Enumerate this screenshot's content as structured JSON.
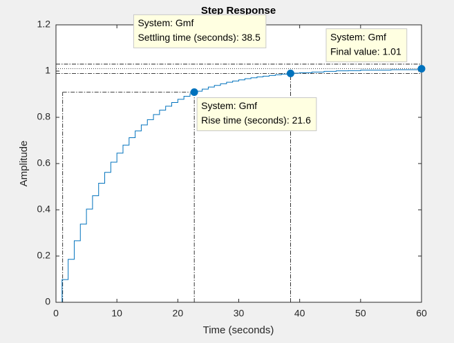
{
  "chart_data": {
    "type": "step",
    "title": "Step Response",
    "xlabel": "Time (seconds)",
    "ylabel": "Amplitude",
    "xlim": [
      0,
      60
    ],
    "ylim": [
      0,
      1.2
    ],
    "xticks": [
      0,
      10,
      20,
      30,
      40,
      50,
      60
    ],
    "yticks": [
      0,
      0.2,
      0.4,
      0.6,
      0.8,
      1,
      1.2
    ],
    "grid": false,
    "series": [
      {
        "name": "Gmf",
        "color": "#0072bd",
        "x": [
          0,
          1,
          2,
          3,
          4,
          5,
          6,
          7,
          8,
          9,
          10,
          11,
          12,
          13,
          14,
          15,
          16,
          17,
          18,
          19,
          20,
          21,
          22,
          23,
          24,
          25,
          26,
          27,
          28,
          29,
          30,
          31,
          32,
          33,
          34,
          35,
          36,
          37,
          38,
          39,
          40,
          42,
          44,
          46,
          48,
          50,
          55,
          60
        ],
        "values": [
          0,
          0.098,
          0.186,
          0.266,
          0.338,
          0.403,
          0.461,
          0.515,
          0.562,
          0.606,
          0.645,
          0.68,
          0.712,
          0.741,
          0.767,
          0.79,
          0.812,
          0.831,
          0.848,
          0.864,
          0.878,
          0.891,
          0.902,
          0.913,
          0.922,
          0.931,
          0.938,
          0.945,
          0.952,
          0.957,
          0.962,
          0.967,
          0.971,
          0.975,
          0.978,
          0.981,
          0.984,
          0.987,
          0.989,
          0.991,
          0.993,
          0.996,
          0.999,
          1.001,
          1.002,
          1.004,
          1.006,
          1.008
        ]
      }
    ],
    "rise_lines": {
      "t_low": 1.1,
      "t_high": 22.7,
      "level": 0.909
    },
    "settling_band": [
      0.99,
      1.03
    ],
    "settling_time_x": 38.5,
    "final_level": 1.01,
    "datatips": [
      {
        "x": 22.7,
        "y": 0.909,
        "lines": [
          "System: Gmf",
          "Rise time (seconds): 21.6"
        ]
      },
      {
        "x": 38.5,
        "y": 0.99,
        "lines": [
          "System: Gmf",
          "Settling time (seconds): 38.5"
        ]
      },
      {
        "x": 60,
        "y": 1.01,
        "lines": [
          "System: Gmf",
          "Final value: 1.01"
        ]
      }
    ]
  }
}
